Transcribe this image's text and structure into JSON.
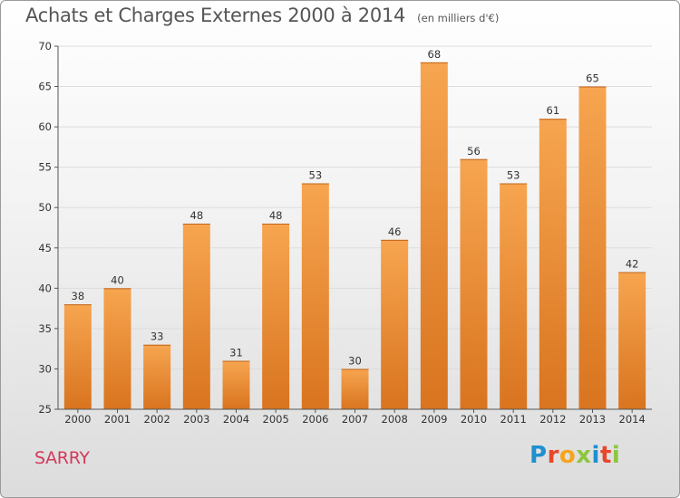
{
  "title": "Achats et Charges Externes 2000 à 2014",
  "subtitle": "(en milliers d'€)",
  "commune": "SARRY",
  "brand": "Proxiti",
  "colors": {
    "bar_top": "#f7a550",
    "bar_bottom": "#d9741f",
    "grid": "#dddddd",
    "axis": "#555555",
    "commune": "#d23a5a",
    "brand_letters": [
      "#1f8fd0",
      "#e8462a",
      "#f6a41c",
      "#8cc63f",
      "#1f8fd0",
      "#e8462a",
      "#8cc63f"
    ]
  },
  "chart_data": {
    "type": "bar",
    "categories": [
      "2000",
      "2001",
      "2002",
      "2003",
      "2004",
      "2005",
      "2006",
      "2007",
      "2008",
      "2009",
      "2010",
      "2011",
      "2012",
      "2013",
      "2014"
    ],
    "values": [
      38,
      40,
      33,
      48,
      31,
      48,
      53,
      30,
      46,
      68,
      56,
      53,
      61,
      65,
      42
    ],
    "ylim": [
      25,
      70
    ],
    "yticks": [
      25,
      30,
      35,
      40,
      45,
      50,
      55,
      60,
      65,
      70
    ],
    "grid": true,
    "data_labels": true
  }
}
